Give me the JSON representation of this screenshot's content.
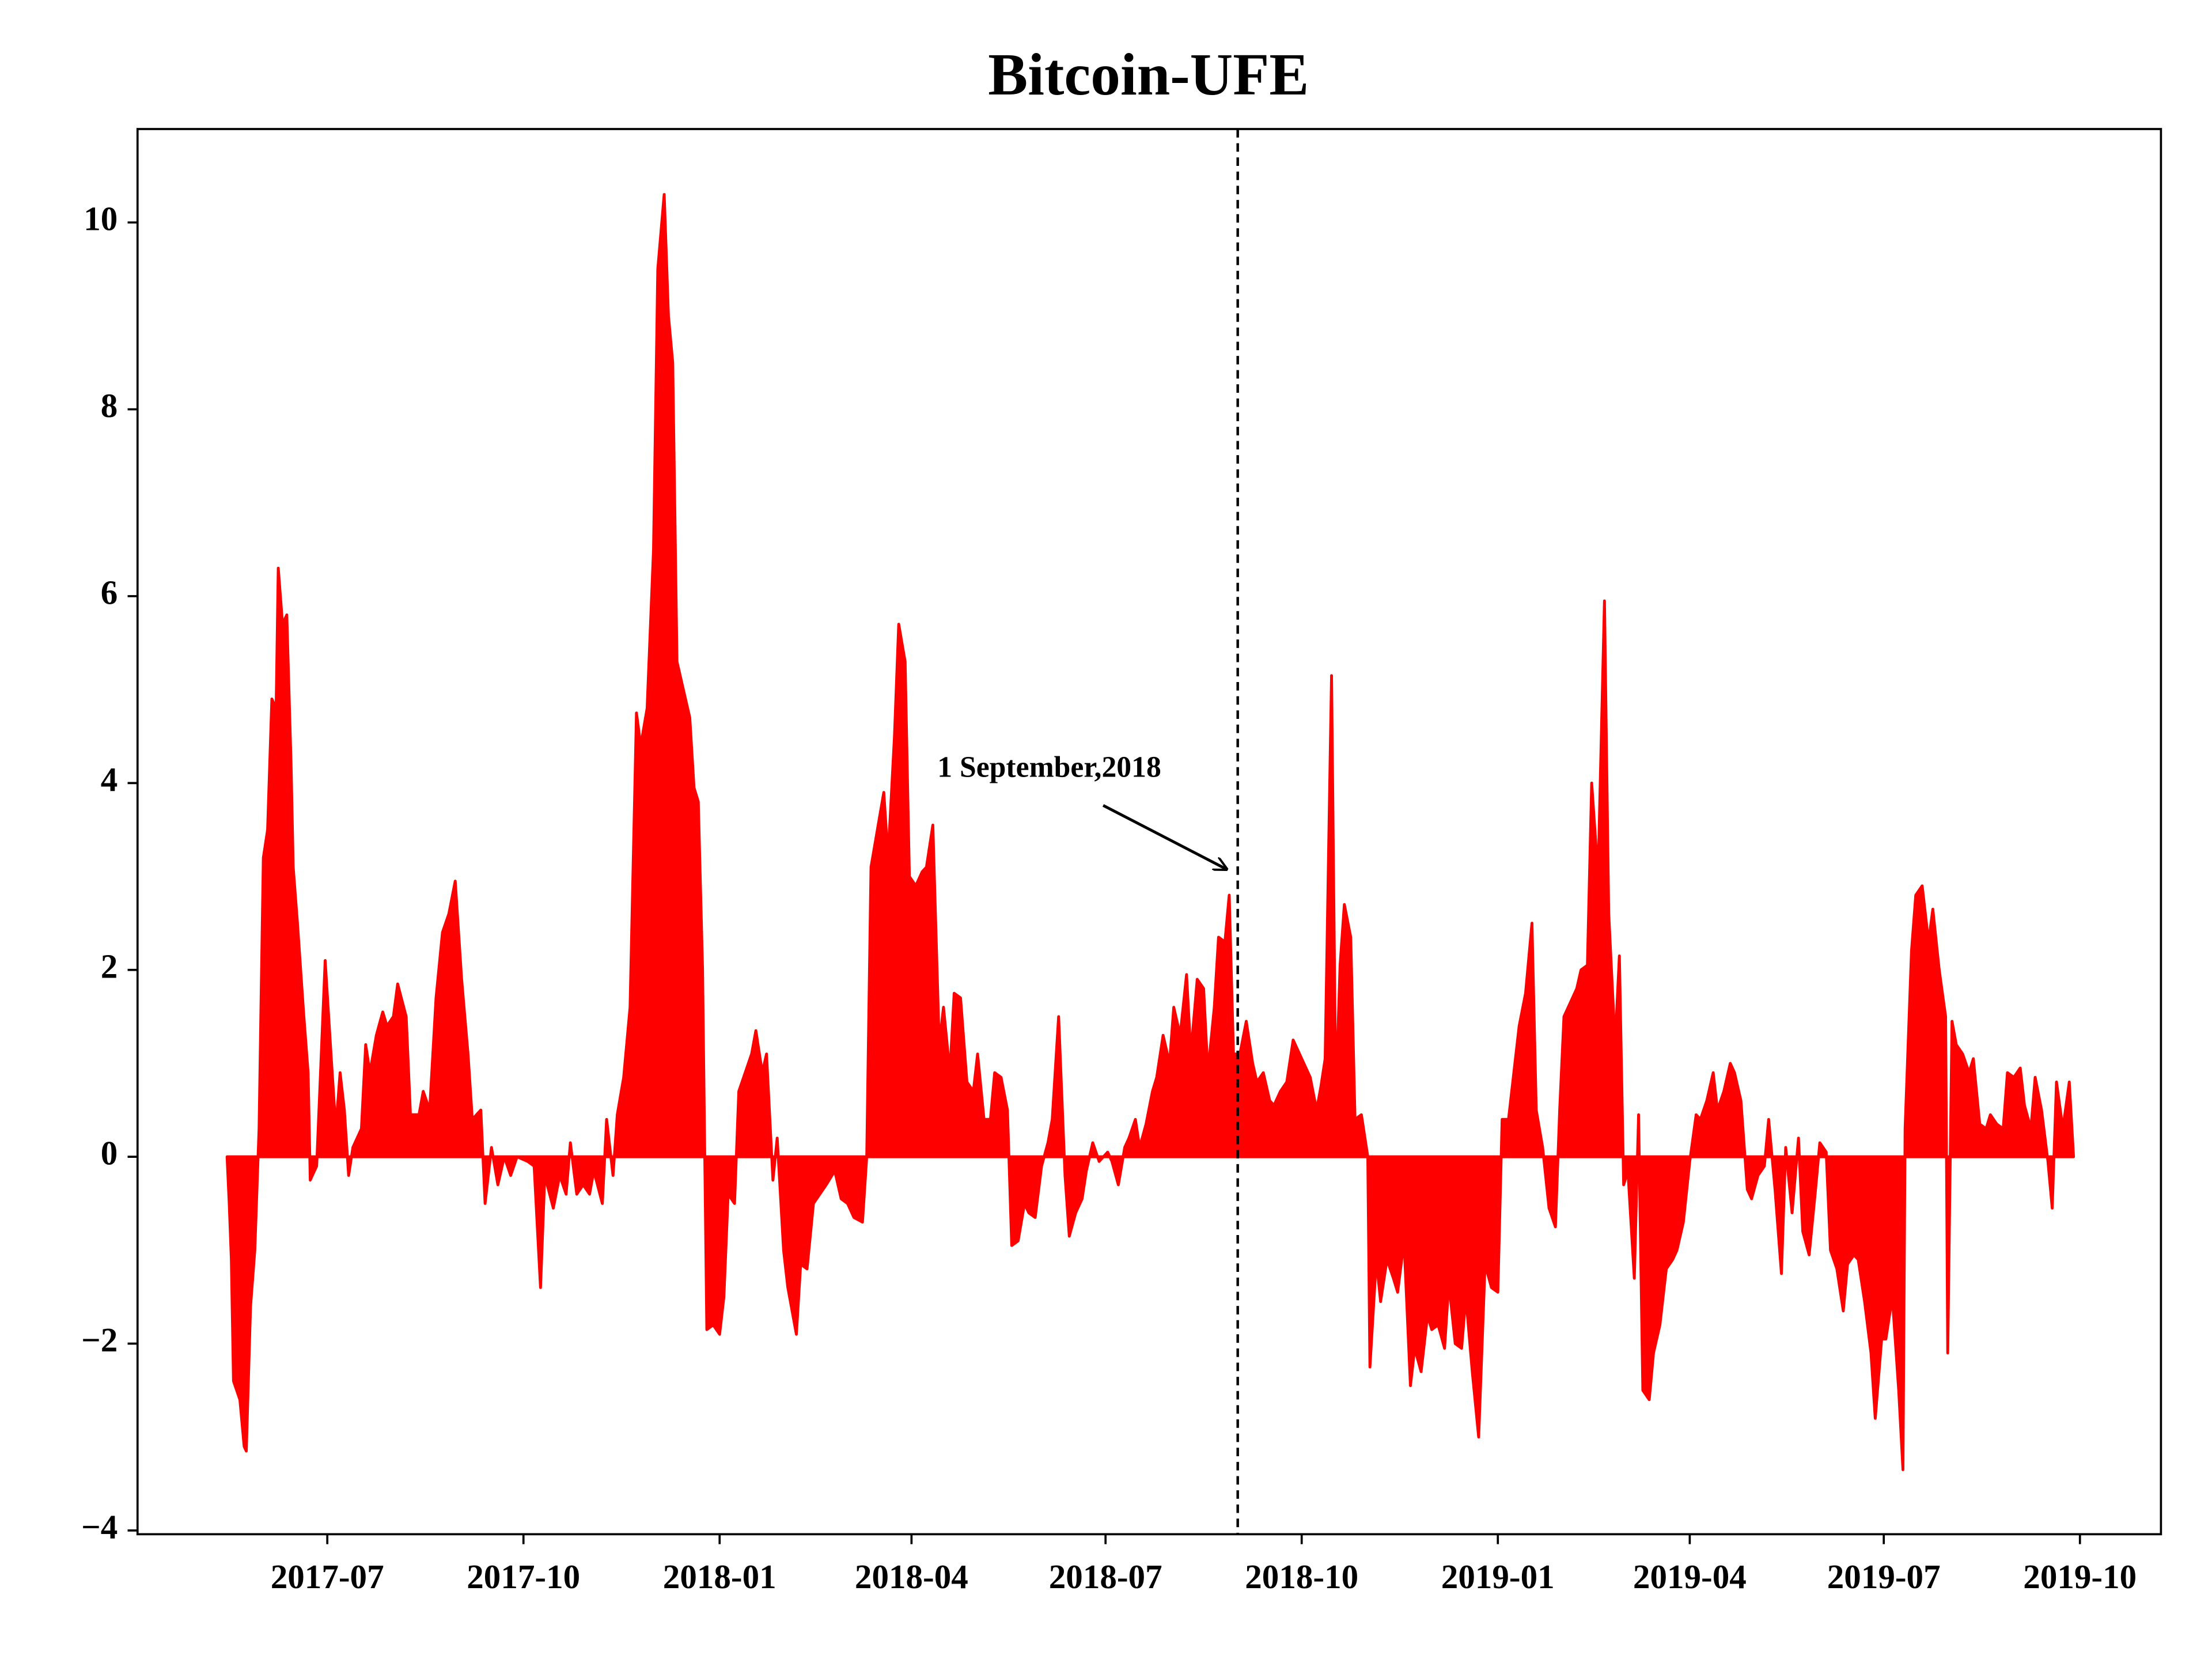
{
  "chart_data": {
    "type": "area",
    "title": "Bitcoin-UFE",
    "color": "#ff0000",
    "annotation": {
      "text": "1 September,2018",
      "x": "2018-09-01"
    },
    "xlim": [
      "2017-04-03",
      "2019-11-08"
    ],
    "xticks": [
      "2017-07",
      "2017-10",
      "2018-01",
      "2018-04",
      "2018-07",
      "2018-10",
      "2019-01",
      "2019-04",
      "2019-07",
      "2019-10"
    ],
    "ylim": [
      -4.04,
      11.0
    ],
    "yticks": [
      {
        "value": -4,
        "label": "−4"
      },
      {
        "value": -2,
        "label": "−2"
      },
      0,
      2,
      4,
      6,
      8,
      10
    ],
    "x": [
      "2017-05-15",
      "2017-05-16",
      "2017-05-17",
      "2017-05-18",
      "2017-05-21",
      "2017-05-23",
      "2017-05-24",
      "2017-05-26",
      "2017-05-28",
      "2017-05-30",
      "2017-06-01",
      "2017-06-03",
      "2017-06-05",
      "2017-06-07",
      "2017-06-08",
      "2017-06-10",
      "2017-06-12",
      "2017-06-14",
      "2017-06-15",
      "2017-06-17",
      "2017-06-20",
      "2017-06-22",
      "2017-06-23",
      "2017-06-26",
      "2017-06-28",
      "2017-06-30",
      "2017-07-03",
      "2017-07-05",
      "2017-07-07",
      "2017-07-09",
      "2017-07-11",
      "2017-07-13",
      "2017-07-17",
      "2017-07-19",
      "2017-07-21",
      "2017-07-24",
      "2017-07-27",
      "2017-07-29",
      "2017-08-01",
      "2017-08-03",
      "2017-08-07",
      "2017-08-09",
      "2017-08-13",
      "2017-08-15",
      "2017-08-18",
      "2017-08-21",
      "2017-08-24",
      "2017-08-27",
      "2017-08-30",
      "2017-09-02",
      "2017-09-05",
      "2017-09-07",
      "2017-09-11",
      "2017-09-13",
      "2017-09-16",
      "2017-09-19",
      "2017-09-22",
      "2017-09-25",
      "2017-09-28",
      "2017-10-03",
      "2017-10-06",
      "2017-10-09",
      "2017-10-11",
      "2017-10-15",
      "2017-10-18",
      "2017-10-21",
      "2017-10-23",
      "2017-10-26",
      "2017-10-29",
      "2017-11-01",
      "2017-11-03",
      "2017-11-07",
      "2017-11-09",
      "2017-11-12",
      "2017-11-14",
      "2017-11-17",
      "2017-11-20",
      "2017-11-23",
      "2017-11-25",
      "2017-11-28",
      "2017-12-01",
      "2017-12-03",
      "2017-12-06",
      "2017-12-08",
      "2017-12-10",
      "2017-12-12",
      "2017-12-15",
      "2017-12-18",
      "2017-12-20",
      "2017-12-22",
      "2017-12-24",
      "2017-12-26",
      "2017-12-29",
      "2018-01-01",
      "2018-01-03",
      "2018-01-05",
      "2018-01-08",
      "2018-01-10",
      "2018-01-13",
      "2018-01-16",
      "2018-01-18",
      "2018-01-21",
      "2018-01-23",
      "2018-01-26",
      "2018-01-28",
      "2018-01-31",
      "2018-02-02",
      "2018-02-06",
      "2018-02-08",
      "2018-02-11",
      "2018-02-14",
      "2018-02-17",
      "2018-02-20",
      "2018-02-24",
      "2018-02-27",
      "2018-03-02",
      "2018-03-05",
      "2018-03-09",
      "2018-03-11",
      "2018-03-13",
      "2018-03-16",
      "2018-03-19",
      "2018-03-21",
      "2018-03-24",
      "2018-03-26",
      "2018-03-29",
      "2018-03-31",
      "2018-04-03",
      "2018-04-06",
      "2018-04-08",
      "2018-04-11",
      "2018-04-14",
      "2018-04-16",
      "2018-04-19",
      "2018-04-21",
      "2018-04-24",
      "2018-04-27",
      "2018-04-30",
      "2018-05-02",
      "2018-05-05",
      "2018-05-08",
      "2018-05-10",
      "2018-05-13",
      "2018-05-16",
      "2018-05-18",
      "2018-05-21",
      "2018-05-24",
      "2018-05-26",
      "2018-05-29",
      "2018-06-01",
      "2018-06-04",
      "2018-06-06",
      "2018-06-09",
      "2018-06-12",
      "2018-06-14",
      "2018-06-17",
      "2018-06-20",
      "2018-06-22",
      "2018-06-25",
      "2018-06-28",
      "2018-07-02",
      "2018-07-04",
      "2018-07-07",
      "2018-07-10",
      "2018-07-12",
      "2018-07-15",
      "2018-07-17",
      "2018-07-20",
      "2018-07-23",
      "2018-07-25",
      "2018-07-28",
      "2018-07-31",
      "2018-08-02",
      "2018-08-05",
      "2018-08-08",
      "2018-08-10",
      "2018-08-13",
      "2018-08-16",
      "2018-08-18",
      "2018-08-21",
      "2018-08-23",
      "2018-08-26",
      "2018-08-28",
      "2018-08-30",
      "2018-09-02",
      "2018-09-05",
      "2018-09-08",
      "2018-09-10",
      "2018-09-13",
      "2018-09-16",
      "2018-09-18",
      "2018-09-21",
      "2018-09-24",
      "2018-09-27",
      "2018-09-29",
      "2018-10-02",
      "2018-10-05",
      "2018-10-08",
      "2018-10-10",
      "2018-10-12",
      "2018-10-15",
      "2018-10-17",
      "2018-10-19",
      "2018-10-21",
      "2018-10-24",
      "2018-10-26",
      "2018-10-29",
      "2018-11-01",
      "2018-11-02",
      "2018-11-05",
      "2018-11-07",
      "2018-11-10",
      "2018-11-13",
      "2018-11-15",
      "2018-11-18",
      "2018-11-21",
      "2018-11-23",
      "2018-11-26",
      "2018-11-29",
      "2018-12-01",
      "2018-12-04",
      "2018-12-07",
      "2018-12-09",
      "2018-12-12",
      "2018-12-15",
      "2018-12-17",
      "2018-12-20",
      "2018-12-23",
      "2018-12-26",
      "2018-12-29",
      "2019-01-01",
      "2019-01-03",
      "2019-01-06",
      "2019-01-09",
      "2019-01-11",
      "2019-01-14",
      "2019-01-17",
      "2019-01-19",
      "2019-01-22",
      "2019-01-25",
      "2019-01-28",
      "2019-01-30",
      "2019-02-01",
      "2019-02-04",
      "2019-02-07",
      "2019-02-09",
      "2019-02-12",
      "2019-02-14",
      "2019-02-17",
      "2019-02-20",
      "2019-02-22",
      "2019-02-25",
      "2019-02-27",
      "2019-03-01",
      "2019-03-03",
      "2019-03-06",
      "2019-03-08",
      "2019-03-10",
      "2019-03-13",
      "2019-03-15",
      "2019-03-18",
      "2019-03-21",
      "2019-03-24",
      "2019-03-26",
      "2019-03-29",
      "2019-04-01",
      "2019-04-04",
      "2019-04-06",
      "2019-04-09",
      "2019-04-12",
      "2019-04-14",
      "2019-04-17",
      "2019-04-20",
      "2019-04-22",
      "2019-04-25",
      "2019-04-28",
      "2019-04-30",
      "2019-05-03",
      "2019-05-06",
      "2019-05-08",
      "2019-05-11",
      "2019-05-14",
      "2019-05-16",
      "2019-05-19",
      "2019-05-22",
      "2019-05-24",
      "2019-05-27",
      "2019-05-30",
      "2019-06-01",
      "2019-06-04",
      "2019-06-06",
      "2019-06-09",
      "2019-06-12",
      "2019-06-14",
      "2019-06-17",
      "2019-06-19",
      "2019-06-22",
      "2019-06-25",
      "2019-06-27",
      "2019-06-30",
      "2019-07-02",
      "2019-07-05",
      "2019-07-08",
      "2019-07-10",
      "2019-07-11",
      "2019-07-14",
      "2019-07-16",
      "2019-07-19",
      "2019-07-22",
      "2019-07-24",
      "2019-07-27",
      "2019-07-30",
      "2019-07-31",
      "2019-08-02",
      "2019-08-04",
      "2019-08-07",
      "2019-08-10",
      "2019-08-12",
      "2019-08-15",
      "2019-08-18",
      "2019-08-20",
      "2019-08-23",
      "2019-08-26",
      "2019-08-28",
      "2019-08-31",
      "2019-09-03",
      "2019-09-05",
      "2019-09-08",
      "2019-09-10",
      "2019-09-13",
      "2019-09-16",
      "2019-09-18",
      "2019-09-20",
      "2019-09-23",
      "2019-09-26",
      "2019-09-28"
    ],
    "values": [
      0,
      -0.5,
      -1.1,
      -2.4,
      -2.6,
      -3.1,
      -3.15,
      -1.6,
      -1.0,
      0.3,
      3.2,
      3.5,
      4.9,
      4.8,
      6.3,
      5.7,
      5.8,
      4.2,
      3.1,
      2.5,
      1.5,
      0.9,
      -0.25,
      -0.1,
      1.0,
      2.1,
      1.0,
      0.3,
      0.9,
      0.5,
      -0.2,
      0.1,
      0.3,
      1.2,
      0.9,
      1.3,
      1.55,
      1.4,
      1.5,
      1.85,
      1.5,
      0.45,
      0.45,
      0.7,
      0.5,
      1.7,
      2.4,
      2.6,
      2.95,
      1.9,
      1.1,
      0.4,
      0.5,
      -0.5,
      0.1,
      -0.3,
      0.0,
      -0.2,
      0.0,
      -0.05,
      -0.1,
      -1.4,
      -0.2,
      -0.55,
      -0.2,
      -0.4,
      0.15,
      -0.4,
      -0.3,
      -0.4,
      -0.15,
      -0.5,
      0.4,
      -0.2,
      0.45,
      0.85,
      1.6,
      4.75,
      4.4,
      4.8,
      6.5,
      9.5,
      10.3,
      9.0,
      8.5,
      5.3,
      5.0,
      4.7,
      3.95,
      3.8,
      2.0,
      -1.85,
      -1.8,
      -1.9,
      -1.5,
      -0.4,
      -0.5,
      0.7,
      0.9,
      1.1,
      1.35,
      0.9,
      1.1,
      -0.25,
      0.2,
      -1.0,
      -1.4,
      -1.9,
      -1.15,
      -1.2,
      -0.5,
      -0.4,
      -0.3,
      -0.15,
      -0.45,
      -0.5,
      -0.65,
      -0.7,
      0.0,
      3.1,
      3.5,
      3.9,
      3.2,
      4.5,
      5.7,
      5.3,
      3.0,
      2.9,
      3.05,
      3.1,
      3.55,
      1.2,
      1.6,
      0.9,
      1.75,
      1.7,
      0.8,
      0.7,
      1.1,
      0.4,
      0.4,
      0.9,
      0.85,
      0.5,
      -0.95,
      -0.9,
      -0.5,
      -0.6,
      -0.65,
      -0.1,
      0.15,
      0.4,
      1.5,
      -0.2,
      -0.85,
      -0.6,
      -0.45,
      -0.15,
      0.15,
      -0.05,
      0.05,
      -0.05,
      -0.3,
      0.1,
      0.2,
      0.4,
      0.1,
      0.35,
      0.7,
      0.85,
      1.3,
      1.0,
      1.6,
      1.3,
      1.95,
      1.1,
      1.9,
      1.8,
      0.9,
      1.6,
      2.35,
      2.3,
      2.8,
      1.1,
      1.1,
      1.45,
      1.0,
      0.8,
      0.9,
      0.6,
      0.55,
      0.7,
      0.8,
      1.25,
      1.15,
      1.0,
      0.85,
      0.5,
      0.75,
      1.05,
      5.15,
      0.6,
      2.05,
      2.7,
      2.35,
      0.4,
      0.45,
      0.0,
      -2.25,
      -1.1,
      -1.55,
      -1.1,
      -1.3,
      -1.45,
      -0.9,
      -2.45,
      -2.05,
      -2.3,
      -1.7,
      -1.85,
      -1.8,
      -2.05,
      -1.35,
      -2.0,
      -2.05,
      -1.5,
      -2.3,
      -3.0,
      -1.15,
      -1.4,
      -1.45,
      0.4,
      0.4,
      1.0,
      1.4,
      1.75,
      2.5,
      0.5,
      0.1,
      -0.55,
      -0.75,
      0.5,
      1.5,
      1.65,
      1.8,
      2.0,
      2.05,
      4.0,
      3.0,
      5.95,
      2.6,
      1.2,
      2.15,
      -0.3,
      -0.15,
      -1.3,
      0.45,
      -2.5,
      -2.6,
      -2.1,
      -1.8,
      -1.2,
      -1.1,
      -1.0,
      -0.7,
      -0.05,
      0.45,
      0.4,
      0.6,
      0.9,
      0.5,
      0.7,
      1.0,
      0.9,
      0.6,
      -0.35,
      -0.45,
      -0.2,
      -0.1,
      0.4,
      -0.35,
      -1.25,
      0.1,
      -0.6,
      0.2,
      -0.8,
      -1.05,
      -0.35,
      0.15,
      0.05,
      -1.0,
      -1.2,
      -1.65,
      -1.15,
      -1.05,
      -1.1,
      -1.55,
      -2.1,
      -2.8,
      -1.95,
      -1.95,
      -1.5,
      -2.5,
      -3.35,
      0.3,
      2.2,
      2.8,
      2.9,
      2.3,
      2.65,
      2.0,
      1.5,
      -2.1,
      1.45,
      1.2,
      1.1,
      0.9,
      1.05,
      0.35,
      0.3,
      0.45,
      0.35,
      0.3,
      0.9,
      0.85,
      0.95,
      0.55,
      0.3,
      0.85,
      0.5,
      -0.05,
      -0.55,
      0.8,
      0.3,
      0.8,
      0.0
    ]
  }
}
